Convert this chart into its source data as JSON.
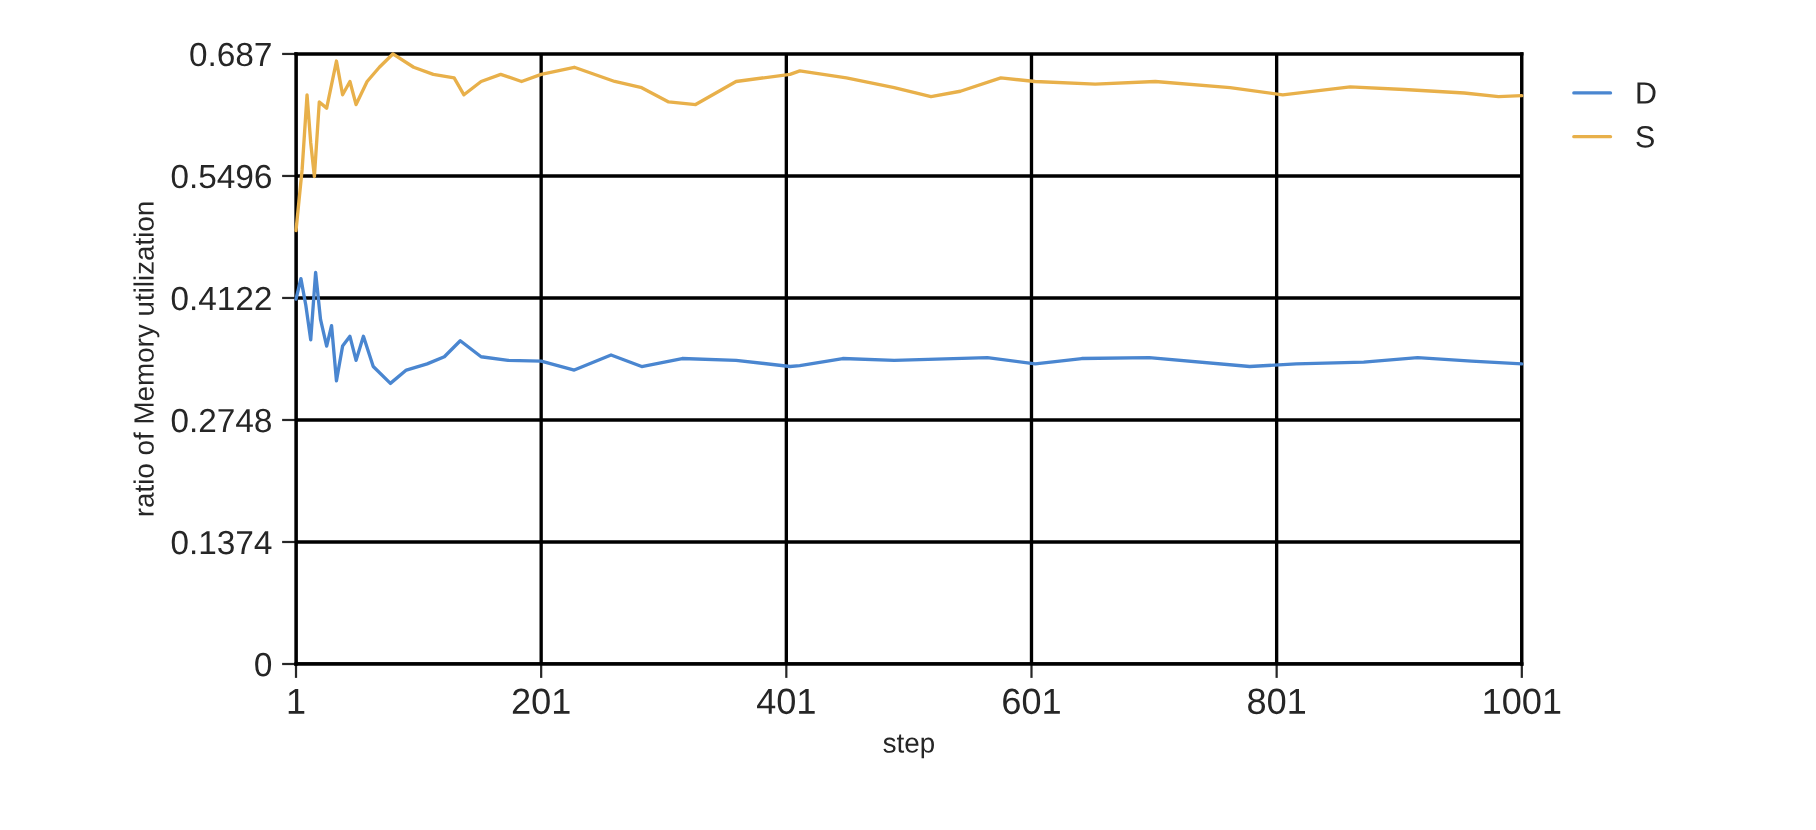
{
  "chart_data": {
    "type": "line",
    "xlabel": "step",
    "ylabel": "ratio of Memory utilization",
    "xlim": [
      1,
      1001
    ],
    "xticks": [
      1,
      201,
      401,
      601,
      801,
      1001
    ],
    "ylim": [
      0,
      0.687
    ],
    "yticks": [
      0,
      0.1374,
      0.2748,
      0.4122,
      0.5496,
      0.687
    ],
    "grid": true,
    "legend": "top right",
    "marker": "none",
    "line_style": "solid",
    "series": [
      {
        "name": "D",
        "color": "#4a86d0",
        "x": [
          1,
          5,
          9,
          13,
          17,
          21,
          26,
          30,
          34,
          39,
          45,
          50,
          56,
          64,
          78,
          91,
          108,
          122,
          135,
          152,
          174,
          201,
          228,
          258,
          283,
          316,
          360,
          404,
          412,
          447,
          489,
          565,
          604,
          642,
          697,
          779,
          817,
          872,
          916,
          960,
          1001
        ],
        "values": [
          0.411,
          0.434,
          0.404,
          0.365,
          0.441,
          0.388,
          0.358,
          0.381,
          0.319,
          0.358,
          0.369,
          0.342,
          0.369,
          0.335,
          0.316,
          0.331,
          0.338,
          0.346,
          0.364,
          0.346,
          0.342,
          0.341,
          0.331,
          0.348,
          0.335,
          0.344,
          0.342,
          0.335,
          0.336,
          0.344,
          0.342,
          0.345,
          0.338,
          0.344,
          0.345,
          0.335,
          0.338,
          0.34,
          0.345,
          0.341,
          0.338
        ]
      },
      {
        "name": "S",
        "color": "#e8b04a",
        "x": [
          1,
          6,
          10,
          13,
          16,
          20,
          26,
          34,
          39,
          45,
          50,
          59,
          69,
          80,
          97,
          113,
          130,
          138,
          152,
          168,
          185,
          201,
          228,
          261,
          283,
          305,
          327,
          360,
          404,
          412,
          450,
          489,
          519,
          543,
          576,
          604,
          653,
          702,
          763,
          806,
          861,
          905,
          954,
          982,
          1001
        ],
        "values": [
          0.488,
          0.557,
          0.641,
          0.587,
          0.549,
          0.633,
          0.626,
          0.679,
          0.641,
          0.656,
          0.63,
          0.656,
          0.672,
          0.687,
          0.672,
          0.664,
          0.66,
          0.641,
          0.656,
          0.664,
          0.656,
          0.664,
          0.672,
          0.656,
          0.649,
          0.633,
          0.63,
          0.656,
          0.664,
          0.668,
          0.66,
          0.649,
          0.639,
          0.645,
          0.66,
          0.656,
          0.653,
          0.656,
          0.649,
          0.641,
          0.65,
          0.647,
          0.643,
          0.639,
          0.64
        ]
      }
    ]
  }
}
